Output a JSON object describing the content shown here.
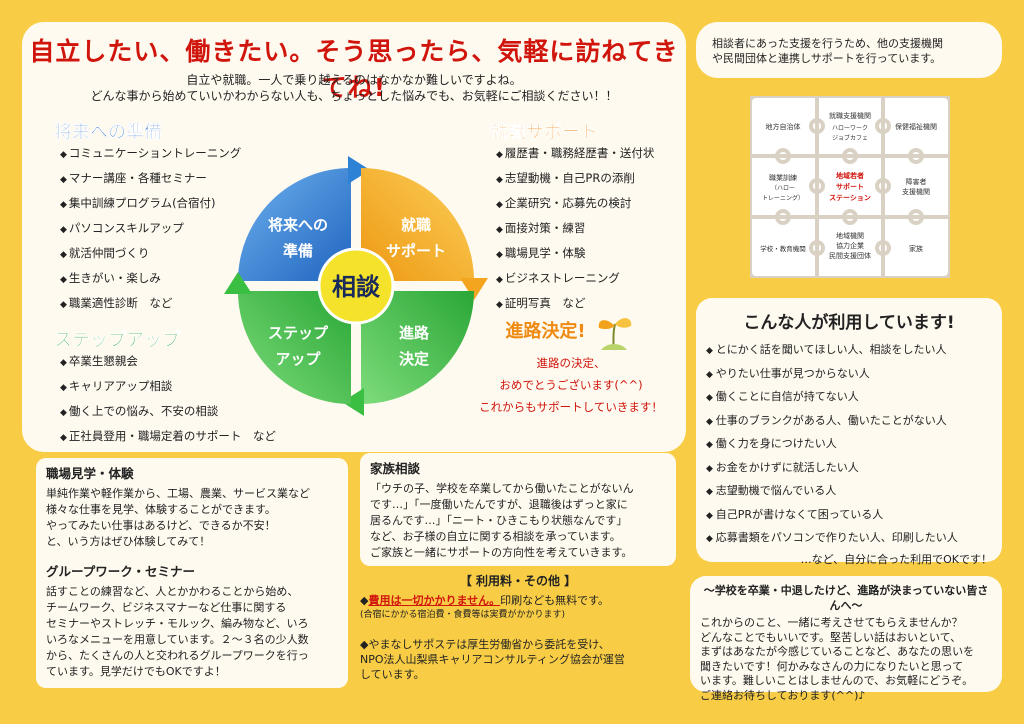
{
  "title": "自立したい、働きたい。そう思ったら、気軽に訪ねてきてね!",
  "intro": {
    "line1": "自立や就職。一人で乗り越えるのはなかなか難しいですよね。",
    "line2": "どんな事から始めていいかわからない人も、ちょっとした悩みでも、お気軽にご相談ください！！"
  },
  "sections": {
    "future": {
      "title": "将来への準備",
      "items": [
        "コミュニケーショントレーニング",
        "マナー講座・各種セミナー",
        "集中訓練プログラム(合宿付)",
        "パソコンスキルアップ",
        "就活仲間づくり",
        "生きがい・楽しみ",
        "職業適性診断　など"
      ]
    },
    "job": {
      "title": "就職サポート",
      "items": [
        "履歴書・職務経歴書・送付状",
        "志望動機・自己PRの添削",
        "企業研究・応募先の検討",
        "面接対策・練習",
        "職場見学・体験",
        "ビジネストレーニング",
        "証明写真　など"
      ]
    },
    "step": {
      "title": "ステップアップ",
      "items": [
        "卒業生懇親会",
        "キャリアアップ相談",
        "働く上での悩み、不安の相談",
        "正社員登用・職場定着のサポート　など"
      ]
    }
  },
  "cycle": {
    "center": "相談",
    "q1a": "将来への",
    "q1b": "準備",
    "q2a": "就職",
    "q2b": "サポート",
    "q3a": "進路",
    "q3b": "決定",
    "q4a": "ステップ",
    "q4b": "アップ",
    "colors": {
      "blue": "#2e82d6",
      "orange": "#f3a51f",
      "green": "#3bbf43",
      "center": "#f4e32a"
    }
  },
  "goal": {
    "title": "進路決定!",
    "line1": "進路の決定、",
    "line2": "おめでとうございます(^^)",
    "line3": "これからもサポートしていきます！"
  },
  "workplace": {
    "title": "職場見学・体験",
    "lines": [
      "単純作業や軽作業から、工場、農業、サービス業など",
      "様々な仕事を見学、体験することができます。",
      "やってみたい仕事はあるけど、できるか不安！",
      "と、いう方はぜひ体験してみて！"
    ]
  },
  "group": {
    "title": "グループワーク・セミナー",
    "lines": [
      "話すことの練習など、人とかかわることから始め、",
      "チームワーク、ビジネスマナーなど仕事に関する",
      "セミナーやストレッチ・モルック、編み物など、いろ",
      "いろなメニューを用意しています。２～３名の少人数",
      "から、たくさんの人と交われるグループワークを行っ",
      "ています。見学だけでもOKですよ！"
    ]
  },
  "family": {
    "title": "家族相談",
    "lines": [
      "「ウチの子、学校を卒業してから働いたことがないん",
      "です…」「一度働いたんですが、退職後はずっと家に",
      "居るんです…」「ニート・ひきこもり状態なんです」",
      "など、お子様の自立に関する相談を承っています。",
      "ご家族と一緒にサポートの方向性を考えていきます。"
    ]
  },
  "fee": {
    "title": "【 利用料・その他 】",
    "free": "費用は一切かかりません。",
    "free_rest": "印刷なども無料です。",
    "note": "(合宿にかかる宿泊費・食費等は実費がかかります)",
    "line1": "◆やまなしサポステは厚生労働省から委託を受け、",
    "line2": "NPO法人山梨県キャリアコンサルティング協会が運営",
    "line3": "しています。"
  },
  "right_top": {
    "line1": "相談者にあった支援を行うため、他の支援機関",
    "line2": "や民間団体と連携しサポートを行っています。"
  },
  "puzzle": {
    "tl": "地方自治体",
    "tm1": "就職支援機関",
    "tm2": "ハローワーク",
    "tm3": "ジョブカフェ",
    "tr": "保健福祉機関",
    "ml1": "職業訓練",
    "ml2": "（ハロー",
    "ml3": "トレーニング）",
    "c1": "地域若者",
    "c2": "サポート",
    "c3": "ステーション",
    "mr1": "障害者",
    "mr2": "支援機関",
    "bl": "学校・教育機関",
    "bm1": "地域機関",
    "bm2": "協力企業",
    "bm3": "民間支援団体",
    "br": "家族"
  },
  "users": {
    "title": "こんな人が利用しています!",
    "items": [
      "とにかく話を聞いてほしい人、相談をしたい人",
      "やりたい仕事が見つからない人",
      "働くことに自信が持てない人",
      "仕事のブランクがある人、働いたことがない人",
      "働く力を身につけたい人",
      "お金をかけずに就活したい人",
      "志望動機で悩んでいる人",
      "自己PRが書けなくて困っている人",
      "応募書類をパソコンで作りたい人、印刷したい人"
    ],
    "footer": "…など、自分に合った利用でOKです！"
  },
  "school": {
    "title": "～学校を卒業・中退したけど、進路が決まっていない皆さんへ～",
    "lines": [
      "これからのこと、一緒に考えさせてもらえませんか？",
      "どんなことでもいいです。堅苦しい話はおいといて、",
      "まずはあなたが今感じていることなど、あなたの思いを",
      "聞きたいです！何かみなさんの力になりたいと思って",
      "います。難しいことはしませんので、お気軽にどうぞ。",
      "ご連絡お待ちしております(^^)♪"
    ]
  }
}
